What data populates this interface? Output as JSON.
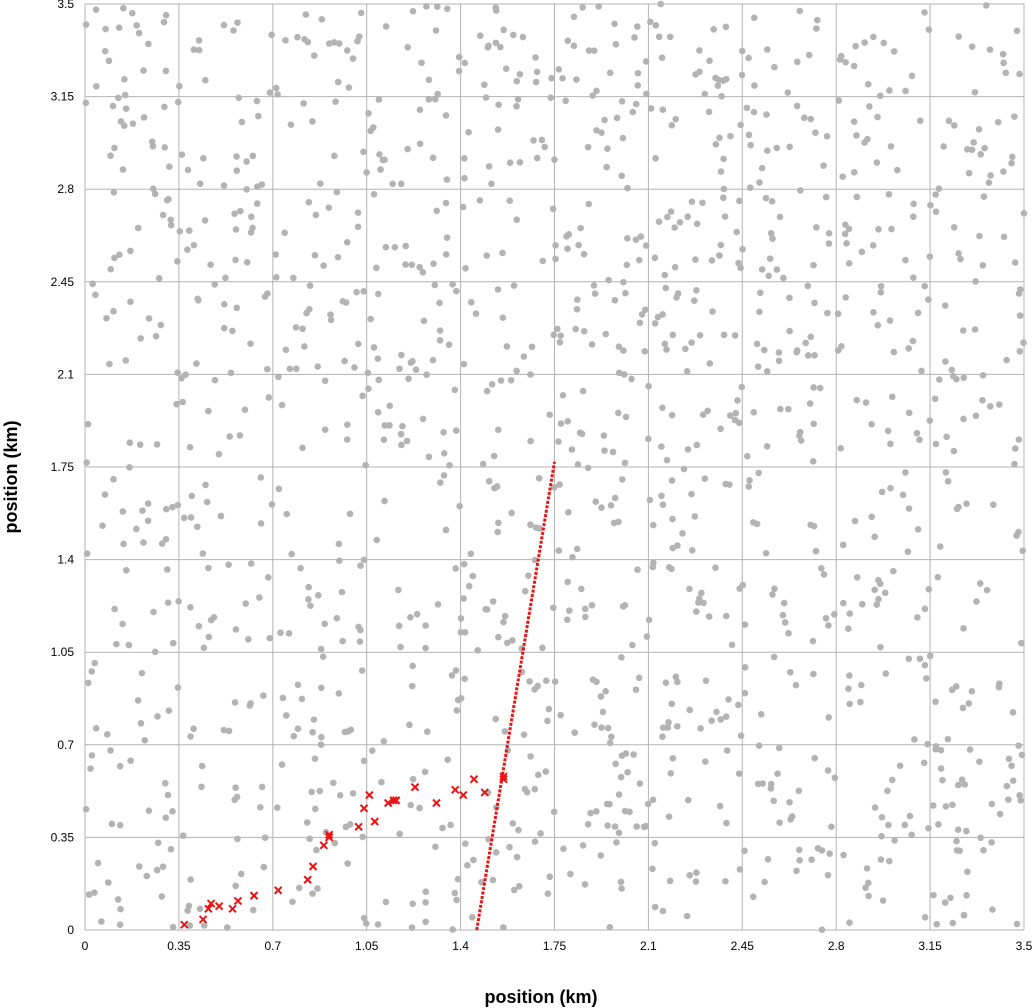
{
  "chart_data": {
    "type": "scatter",
    "xlabel": "position (km)",
    "ylabel": "position (km)",
    "xlim": [
      0,
      3.5
    ],
    "ylim": [
      0,
      3.5
    ],
    "xticks": [
      "0",
      "0.35",
      "0.7",
      "1.05",
      "1.4",
      "1.75",
      "2.1",
      "2.45",
      "2.8",
      "3.15",
      "3.5"
    ],
    "yticks": [
      "0",
      "0.35",
      "0.7",
      "1.05",
      "1.4",
      "1.75",
      "2.1",
      "2.45",
      "2.8",
      "3.15",
      "3.5"
    ],
    "grid": true,
    "legend": "none",
    "colors": {
      "background_points": "#b3b3b3",
      "path": "#ee1111",
      "grid": "#b3b3b3"
    },
    "series": [
      {
        "marker": "circle",
        "color": "#b3b3b3",
        "note_visible": false,
        "count": 1400,
        "distribution": "uniform"
      },
      {
        "marker": "x",
        "color": "#ee1111",
        "points": [
          [
            0.37,
            0.02
          ],
          [
            0.44,
            0.04
          ],
          [
            0.46,
            0.08
          ],
          [
            0.47,
            0.1
          ],
          [
            0.5,
            0.09
          ],
          [
            0.55,
            0.08
          ],
          [
            0.57,
            0.11
          ],
          [
            0.63,
            0.13
          ],
          [
            0.72,
            0.15
          ],
          [
            0.83,
            0.19
          ],
          [
            0.85,
            0.24
          ],
          [
            0.89,
            0.32
          ],
          [
            0.91,
            0.36
          ],
          [
            0.91,
            0.35
          ],
          [
            1.02,
            0.39
          ],
          [
            1.04,
            0.46
          ],
          [
            1.06,
            0.51
          ],
          [
            1.08,
            0.41
          ],
          [
            1.13,
            0.48
          ],
          [
            1.15,
            0.49
          ],
          [
            1.16,
            0.49
          ],
          [
            1.23,
            0.54
          ],
          [
            1.31,
            0.48
          ],
          [
            1.38,
            0.53
          ],
          [
            1.41,
            0.51
          ],
          [
            1.45,
            0.57
          ],
          [
            1.49,
            0.52
          ],
          [
            1.56,
            0.57
          ],
          [
            1.56,
            0.58
          ]
        ]
      },
      {
        "marker": "dotted-line",
        "color": "#ee1111",
        "points": [
          [
            1.46,
            0.0
          ],
          [
            1.75,
            1.77
          ]
        ]
      }
    ]
  }
}
